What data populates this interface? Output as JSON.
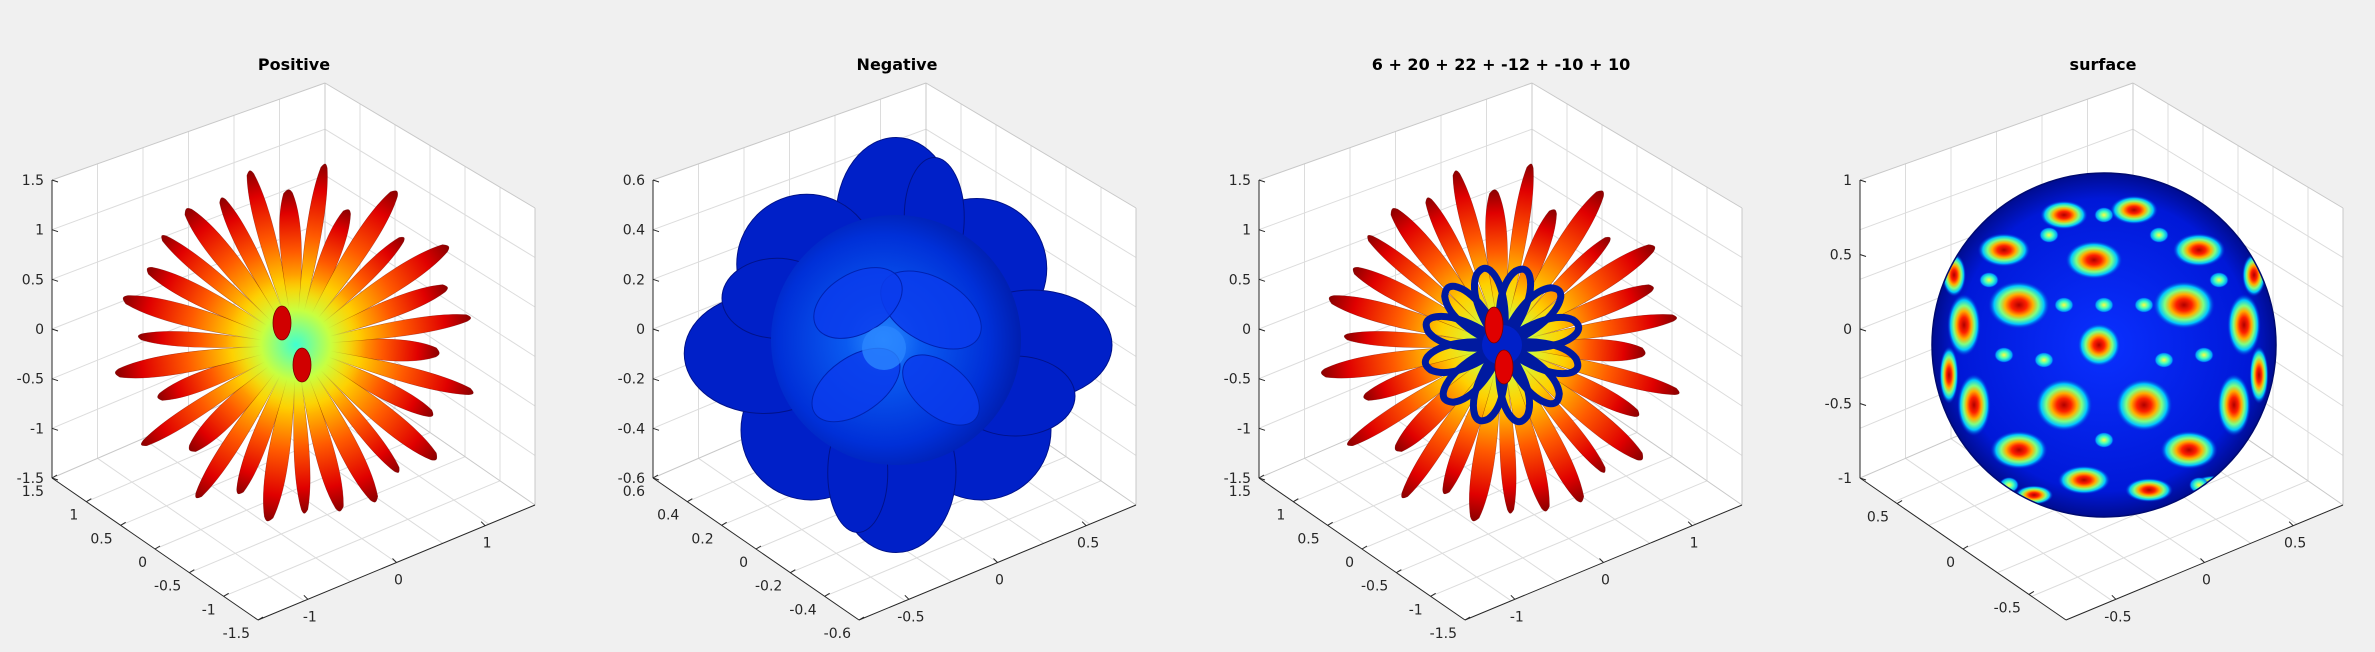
{
  "figure": {
    "background": "#f0f0f0",
    "colormap": "jet",
    "grid": true
  },
  "chart_data": [
    {
      "type": "surface3d",
      "title": "Positive",
      "shape": "spherical-harmonic lobes (positive part)",
      "colormap": "jet",
      "zlim": [
        -1.5,
        1.5
      ],
      "z_ticks": [
        "1.5",
        "1",
        "0.5",
        "0",
        "-0.5",
        "-1",
        "-1.5"
      ],
      "xlim": [
        -1.5,
        1.5
      ],
      "x_ticks": [
        "1.5",
        "1",
        "0.5",
        "0",
        "-0.5",
        "-1",
        "-1.5"
      ],
      "ylim": [
        -1.5,
        1.5
      ],
      "y_ticks": [
        "-1",
        "0",
        "1"
      ]
    },
    {
      "type": "surface3d",
      "title": "Negative",
      "shape": "spherical-harmonic lobes (negative part)",
      "colormap": "jet",
      "zlim": [
        -0.6,
        0.6
      ],
      "z_ticks": [
        "0.6",
        "0.4",
        "0.2",
        "0",
        "-0.2",
        "-0.4",
        "-0.6"
      ],
      "xlim": [
        -0.6,
        0.6
      ],
      "x_ticks": [
        "0.6",
        "0.4",
        "0.2",
        "0",
        "-0.2",
        "-0.4",
        "-0.6"
      ],
      "ylim": [
        -0.6,
        0.6
      ],
      "y_ticks": [
        "-0.5",
        "0",
        "0.5"
      ]
    },
    {
      "type": "surface3d",
      "title": "6 + 20 + 22 + -12 + -10 + 10",
      "shape": "combined positive and negative lobes",
      "colormap": "jet",
      "zlim": [
        -1.5,
        1.5
      ],
      "z_ticks": [
        "1.5",
        "1",
        "0.5",
        "0",
        "-0.5",
        "-1",
        "-1.5"
      ],
      "xlim": [
        -1.5,
        1.5
      ],
      "x_ticks": [
        "1.5",
        "1",
        "0.5",
        "0",
        "-0.5",
        "-1",
        "-1.5"
      ],
      "ylim": [
        -1.5,
        1.5
      ],
      "y_ticks": [
        "-1",
        "0",
        "1"
      ]
    },
    {
      "type": "surface3d",
      "title": "surface",
      "shape": "unit sphere coloured by function value",
      "colormap": "jet",
      "zlim": [
        -1,
        1
      ],
      "z_ticks": [
        "1",
        "0.5",
        "0",
        "-0.5",
        "-1"
      ],
      "xlim": [
        -1,
        1
      ],
      "x_ticks": [
        "0.5",
        "0",
        "-0.5"
      ],
      "ylim": [
        -1,
        1
      ],
      "y_ticks": [
        "-0.5",
        "0",
        "0.5"
      ]
    }
  ]
}
